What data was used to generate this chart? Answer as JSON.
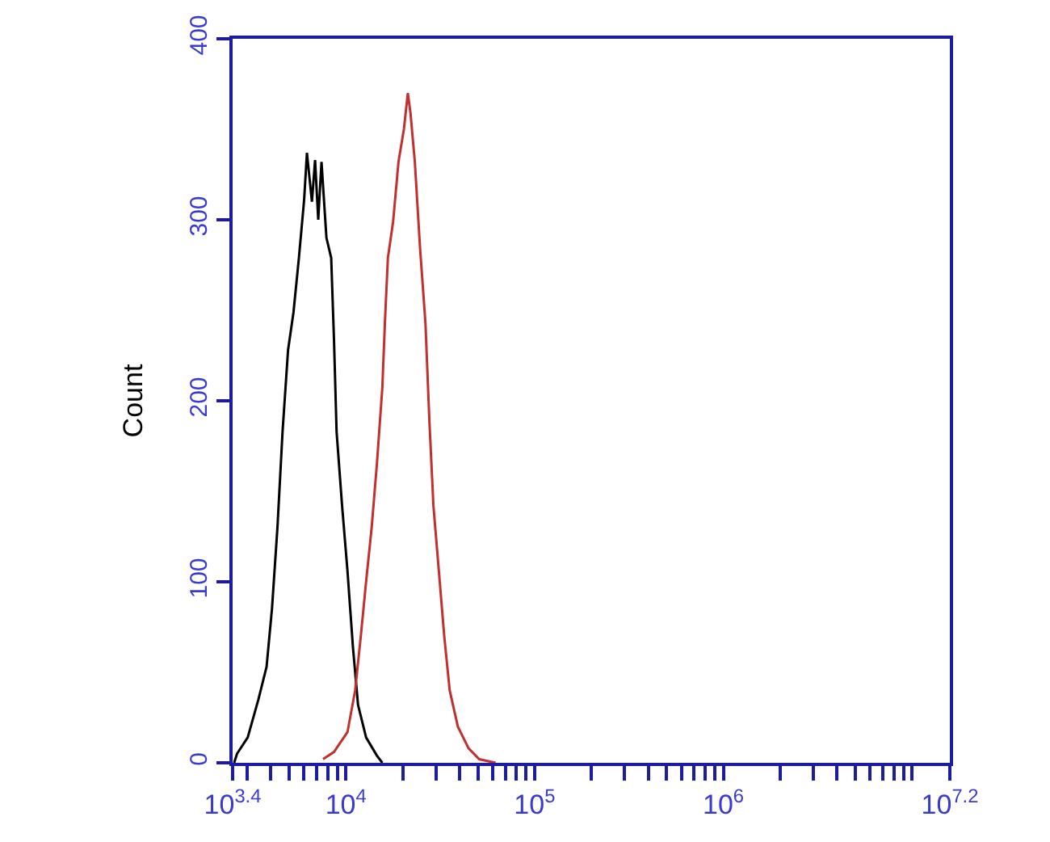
{
  "chart_data": {
    "type": "line",
    "ylabel": "Count",
    "log": "x",
    "grid": false,
    "xlim": [
      2511.9,
      15848931.9
    ],
    "xticks": [
      {
        "value": 2511.9,
        "label": "10$^{3.4}$"
      },
      {
        "value": 3000,
        "label": null
      },
      {
        "value": 4000,
        "label": null
      },
      {
        "value": 5000,
        "label": null
      },
      {
        "value": 6000,
        "label": null
      },
      {
        "value": 7000,
        "label": null
      },
      {
        "value": 8000,
        "label": null
      },
      {
        "value": 9000,
        "label": null
      },
      {
        "value": 10000,
        "label": "10$^{4}$"
      },
      {
        "value": 20000,
        "label": null
      },
      {
        "value": 30000,
        "label": null
      },
      {
        "value": 40000,
        "label": null
      },
      {
        "value": 50000,
        "label": null
      },
      {
        "value": 60000,
        "label": null
      },
      {
        "value": 70000,
        "label": null
      },
      {
        "value": 80000,
        "label": null
      },
      {
        "value": 90000,
        "label": null
      },
      {
        "value": 100000,
        "label": "10$^{5}$"
      },
      {
        "value": 200000,
        "label": null
      },
      {
        "value": 300000,
        "label": null
      },
      {
        "value": 400000,
        "label": null
      },
      {
        "value": 500000,
        "label": null
      },
      {
        "value": 600000,
        "label": null
      },
      {
        "value": 700000,
        "label": null
      },
      {
        "value": 800000,
        "label": null
      },
      {
        "value": 900000,
        "label": null
      },
      {
        "value": 1000000,
        "label": "10$^{6}$"
      },
      {
        "value": 2000000,
        "label": null
      },
      {
        "value": 3000000,
        "label": null
      },
      {
        "value": 4000000,
        "label": null
      },
      {
        "value": 5000000,
        "label": null
      },
      {
        "value": 6000000,
        "label": null
      },
      {
        "value": 7000000,
        "label": null
      },
      {
        "value": 8000000,
        "label": null
      },
      {
        "value": 9000000,
        "label": null
      },
      {
        "value": 10000000,
        "label": null
      },
      {
        "value": 15848931.9,
        "label": "10$^{7.2}$"
      }
    ],
    "ylim": [
      0,
      400
    ],
    "yticks": [
      0,
      100,
      200,
      300,
      400
    ],
    "series": [
      {
        "color": "#000000",
        "x": [
          2560,
          2650,
          3020,
          3440,
          3800,
          4060,
          4340,
          4620,
          4940,
          5280,
          5640,
          6010,
          6220,
          6610,
          6870,
          7140,
          7430,
          7890,
          8360,
          8650,
          8930,
          9550,
          10200,
          10900,
          11600,
          12800,
          14600,
          15600
        ],
        "values": [
          0,
          5,
          14,
          35,
          53,
          85,
          130,
          183,
          228,
          249,
          279,
          311,
          337,
          310,
          333,
          300,
          332,
          290,
          279,
          234,
          183,
          142,
          106,
          64,
          32,
          14,
          4,
          0
        ]
      },
      {
        "color": "#c03030",
        "x": [
          7570,
          8650,
          10200,
          11200,
          12000,
          12800,
          13700,
          14600,
          15600,
          16100,
          16700,
          17800,
          19000,
          20300,
          21300,
          22000,
          23200,
          24700,
          26400,
          27700,
          29100,
          31100,
          33200,
          35500,
          39200,
          44700,
          50900,
          62100
        ],
        "values": [
          2,
          6,
          17,
          40,
          70,
          100,
          130,
          165,
          207,
          243,
          279,
          299,
          332,
          350,
          370,
          359,
          332,
          285,
          243,
          189,
          142,
          106,
          70,
          40,
          20,
          8,
          2,
          0
        ]
      }
    ]
  }
}
